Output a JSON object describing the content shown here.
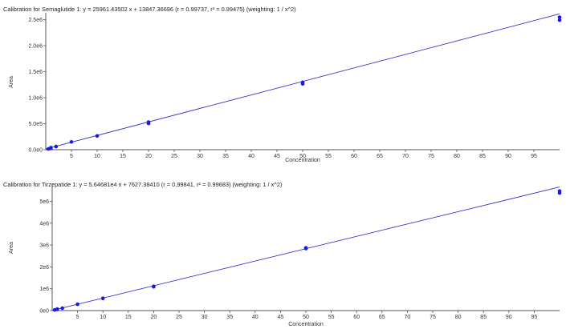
{
  "chart_data": [
    {
      "type": "scatter",
      "title": "Calibration for Semaglutide 1: y = 25961.43502 x + 13847.36696 (r = 0.99737, r² = 0.99475)  (weighting: 1 / x^2)",
      "xlabel": "Concentration",
      "ylabel": "Area",
      "xlim": [
        0,
        100
      ],
      "ylim": [
        0,
        2600000
      ],
      "x_ticks": [
        5,
        10,
        15,
        20,
        25,
        30,
        35,
        40,
        45,
        50,
        55,
        60,
        65,
        70,
        75,
        80,
        85,
        90,
        95
      ],
      "x_tick_labels": [
        "5",
        "10",
        "15",
        "20",
        "25",
        "30",
        "35",
        "40",
        "45",
        "50",
        "55",
        "60",
        "65",
        "70",
        "75",
        "80",
        "85",
        "90",
        "95"
      ],
      "y_ticks": [
        0,
        500000,
        1000000,
        1500000,
        2000000,
        2500000
      ],
      "y_tick_labels": [
        "0.0e0",
        "5.0e5",
        "1.0e6",
        "1.5e6",
        "2.0e6",
        "2.5e6"
      ],
      "fit": {
        "slope": 25961.43502,
        "intercept": 13847.36696,
        "x_range": [
          0,
          100
        ]
      },
      "points": [
        {
          "x": 0.5,
          "y": 15000
        },
        {
          "x": 1,
          "y": 25000
        },
        {
          "x": 1,
          "y": 40000
        },
        {
          "x": 2,
          "y": 60000
        },
        {
          "x": 5,
          "y": 150000
        },
        {
          "x": 10,
          "y": 265000
        },
        {
          "x": 20,
          "y": 505000
        },
        {
          "x": 20,
          "y": 530000
        },
        {
          "x": 50,
          "y": 1265000
        },
        {
          "x": 50,
          "y": 1295000
        },
        {
          "x": 100,
          "y": 2490000
        },
        {
          "x": 100,
          "y": 2545000
        }
      ],
      "colors": {
        "line": "#3333cc",
        "points": "#1a1ae6",
        "axis": "#555555"
      }
    },
    {
      "type": "scatter",
      "title": "Calibration for Tirzepatide 1: y = 5.64681e4 x + 7627.38410 (r = 0.99841, r² = 0.99683)  (weighting: 1 / x^2)",
      "xlabel": "Concentration",
      "ylabel": "Area",
      "xlim": [
        0,
        100
      ],
      "ylim": [
        0,
        5750000
      ],
      "x_ticks": [
        5,
        10,
        15,
        20,
        25,
        30,
        35,
        40,
        45,
        50,
        55,
        60,
        65,
        70,
        75,
        80,
        85,
        90,
        95
      ],
      "x_tick_labels": [
        "5",
        "10",
        "15",
        "20",
        "25",
        "30",
        "35",
        "40",
        "45",
        "50",
        "55",
        "60",
        "65",
        "70",
        "75",
        "80",
        "85",
        "90",
        "95"
      ],
      "y_ticks": [
        0,
        1000000,
        2000000,
        3000000,
        4000000,
        5000000
      ],
      "y_tick_labels": [
        "0e0",
        "1e6",
        "2e6",
        "3e6",
        "4e6",
        "5e6"
      ],
      "fit": {
        "slope": 56468.1,
        "intercept": 7627.3841,
        "x_range": [
          0,
          100
        ]
      },
      "points": [
        {
          "x": 0.5,
          "y": 30000
        },
        {
          "x": 1,
          "y": 55000
        },
        {
          "x": 1,
          "y": 70000
        },
        {
          "x": 2,
          "y": 110000
        },
        {
          "x": 5,
          "y": 290000
        },
        {
          "x": 10,
          "y": 560000
        },
        {
          "x": 20,
          "y": 1090000
        },
        {
          "x": 20,
          "y": 1110000
        },
        {
          "x": 50,
          "y": 2840000
        },
        {
          "x": 50,
          "y": 2870000
        },
        {
          "x": 100,
          "y": 5380000
        },
        {
          "x": 100,
          "y": 5470000
        }
      ],
      "colors": {
        "line": "#3333cc",
        "points": "#1a1ae6",
        "axis": "#555555"
      }
    }
  ]
}
